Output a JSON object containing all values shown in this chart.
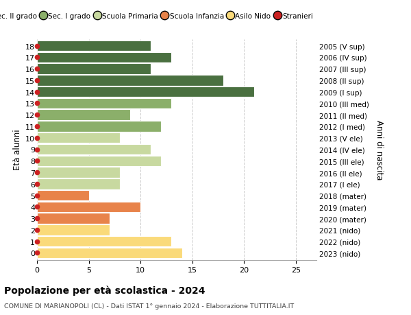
{
  "ages": [
    0,
    1,
    2,
    3,
    4,
    5,
    6,
    7,
    8,
    9,
    10,
    11,
    12,
    13,
    14,
    15,
    16,
    17,
    18
  ],
  "right_labels": [
    "2023 (nido)",
    "2022 (nido)",
    "2021 (nido)",
    "2020 (mater)",
    "2019 (mater)",
    "2018 (mater)",
    "2017 (I ele)",
    "2016 (II ele)",
    "2015 (III ele)",
    "2014 (IV ele)",
    "2013 (V ele)",
    "2012 (I med)",
    "2011 (II med)",
    "2010 (III med)",
    "2009 (I sup)",
    "2008 (II sup)",
    "2007 (III sup)",
    "2006 (IV sup)",
    "2005 (V sup)"
  ],
  "values": [
    14,
    13,
    7,
    7,
    10,
    5,
    8,
    8,
    12,
    11,
    8,
    12,
    9,
    13,
    21,
    18,
    11,
    13,
    11
  ],
  "bar_colors": [
    "#FADA7A",
    "#FADA7A",
    "#FADA7A",
    "#E8834A",
    "#E8834A",
    "#E8834A",
    "#C8D9A0",
    "#C8D9A0",
    "#C8D9A0",
    "#C8D9A0",
    "#C8D9A0",
    "#8BAF6A",
    "#8BAF6A",
    "#8BAF6A",
    "#4A7040",
    "#4A7040",
    "#4A7040",
    "#4A7040",
    "#4A7040"
  ],
  "dot_color": "#CC2222",
  "legend_labels": [
    "Sec. II grado",
    "Sec. I grado",
    "Scuola Primaria",
    "Scuola Infanzia",
    "Asilo Nido",
    "Stranieri"
  ],
  "legend_colors": [
    "#4A7040",
    "#8BAF6A",
    "#C8D9A0",
    "#E8834A",
    "#FADA7A",
    "#CC2222"
  ],
  "ylabel_left": "Età alunni",
  "ylabel_right": "Anni di nascita",
  "title": "Popolazione per età scolastica - 2024",
  "subtitle": "COMUNE DI MARIANOPOLI (CL) - Dati ISTAT 1° gennaio 2024 - Elaborazione TUTTITALIA.IT",
  "xlim": [
    0,
    27
  ],
  "bg_color": "#FFFFFF",
  "grid_color": "#CCCCCC",
  "bar_height": 0.92
}
